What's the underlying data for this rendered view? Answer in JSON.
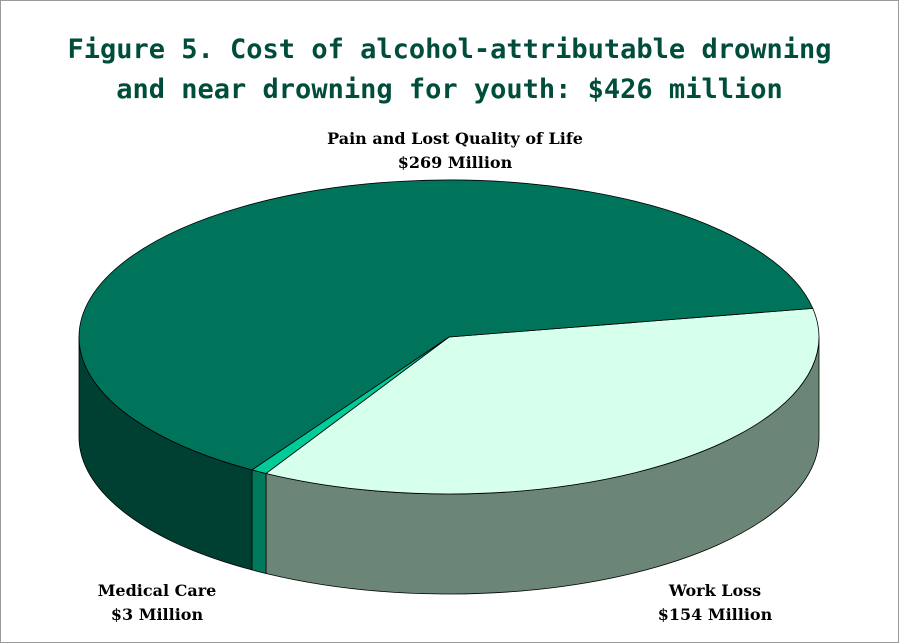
{
  "chart_data": {
    "type": "pie",
    "title": "Figure 5. Cost of alcohol-attributable drowning and near drowning for youth: $426 million",
    "title_lines": [
      "Figure 5. Cost of alcohol-attributable drowning",
      "and near drowning for youth: $426 million"
    ],
    "units": "Million",
    "style": "3d",
    "slices": [
      {
        "label": "Pain and Lost Quality of Life",
        "value": 269,
        "value_label": "$269 Million",
        "color": "#00745a",
        "side_color": "#004033"
      },
      {
        "label": "Work Loss",
        "value": 154,
        "value_label": "$154 Million",
        "color": "#d6ffec",
        "side_color": "#6b8577"
      },
      {
        "label": "Medical Care",
        "value": 3,
        "value_label": "$3 Million",
        "color": "#00cc99",
        "side_color": "#007a5c"
      }
    ]
  }
}
